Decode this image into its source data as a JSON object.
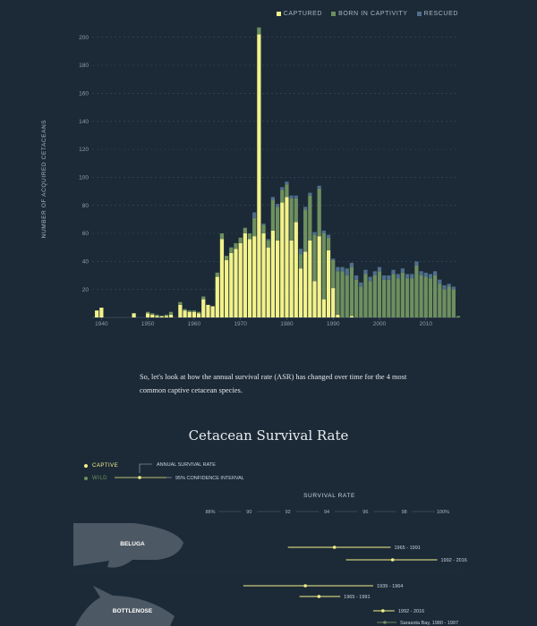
{
  "legend": {
    "captured": "CAPTURED",
    "born": "BORN IN CAPTIVITY",
    "rescued": "RESCUED"
  },
  "colors": {
    "captured": "#f3f28a",
    "born": "#6e8f5f",
    "rescued": "#4f6f8c"
  },
  "paragraph": "So, let's look at how the annual survival rate (ASR) has changed over time for the 4 most common captive cetacean species.",
  "chart_data": [
    {
      "type": "bar",
      "stacked": true,
      "ylabel": "NUMBER OF ACQUIRED CETACEANS",
      "xlim": [
        1938,
        2017
      ],
      "ylim": [
        0,
        210
      ],
      "yticks": [
        20,
        40,
        60,
        80,
        100,
        120,
        140,
        160,
        180,
        200
      ],
      "xticks": [
        1940,
        1950,
        1960,
        1970,
        1980,
        1990,
        2000,
        2010
      ],
      "grid": true,
      "legend_position": "top-right",
      "years": [
        1938,
        1939,
        1940,
        1941,
        1942,
        1943,
        1944,
        1945,
        1946,
        1947,
        1948,
        1949,
        1950,
        1951,
        1952,
        1953,
        1954,
        1955,
        1956,
        1957,
        1958,
        1959,
        1960,
        1961,
        1962,
        1963,
        1964,
        1965,
        1966,
        1967,
        1968,
        1969,
        1970,
        1971,
        1972,
        1973,
        1974,
        1975,
        1976,
        1977,
        1978,
        1979,
        1980,
        1981,
        1982,
        1983,
        1984,
        1985,
        1986,
        1987,
        1988,
        1989,
        1990,
        1991,
        1992,
        1993,
        1994,
        1995,
        1996,
        1997,
        1998,
        1999,
        2000,
        2001,
        2002,
        2003,
        2004,
        2005,
        2006,
        2007,
        2008,
        2009,
        2010,
        2011,
        2012,
        2013,
        2014,
        2015,
        2016,
        2017
      ],
      "series": [
        {
          "name": "CAPTURED",
          "values": [
            0,
            5,
            7,
            0,
            0,
            0,
            0,
            0,
            0,
            3,
            0,
            0,
            3,
            2,
            1,
            1,
            1,
            2,
            0,
            9,
            5,
            4,
            4,
            3,
            13,
            9,
            8,
            29,
            56,
            41,
            46,
            49,
            53,
            60,
            56,
            58,
            202,
            60,
            50,
            62,
            55,
            82,
            86,
            55,
            68,
            35,
            47,
            55,
            26,
            58,
            13,
            48,
            21,
            2,
            0,
            0,
            1,
            0,
            0,
            0,
            0,
            0,
            0,
            0,
            0,
            0,
            0,
            0,
            0,
            0,
            0,
            0,
            0,
            0,
            0,
            0,
            0,
            0,
            0,
            0
          ]
        },
        {
          "name": "BORN IN CAPTIVITY",
          "values": [
            0,
            0,
            0,
            0,
            0,
            0,
            0,
            0,
            0,
            0,
            0,
            0,
            1,
            1,
            1,
            0,
            1,
            2,
            0,
            2,
            1,
            1,
            1,
            1,
            2,
            0,
            0,
            3,
            4,
            3,
            4,
            4,
            4,
            4,
            4,
            13,
            5,
            6,
            5,
            22,
            24,
            9,
            9,
            30,
            17,
            10,
            30,
            32,
            33,
            34,
            47,
            9,
            20,
            31,
            33,
            30,
            35,
            27,
            22,
            31,
            26,
            30,
            33,
            27,
            27,
            31,
            28,
            32,
            28,
            28,
            37,
            30,
            29,
            28,
            30,
            24,
            20,
            22,
            20,
            1
          ]
        },
        {
          "name": "RESCUED",
          "values": [
            0,
            0,
            0,
            0,
            0,
            0,
            0,
            0,
            0,
            0,
            0,
            0,
            0,
            0,
            0,
            0,
            0,
            0,
            0,
            0,
            0,
            0,
            0,
            0,
            0,
            0,
            0,
            0,
            0,
            0,
            0,
            0,
            0,
            0,
            0,
            4,
            0,
            1,
            1,
            2,
            2,
            2,
            2,
            2,
            2,
            4,
            2,
            2,
            2,
            2,
            2,
            2,
            1,
            3,
            3,
            5,
            3,
            3,
            3,
            3,
            3,
            3,
            3,
            3,
            3,
            3,
            3,
            3,
            3,
            3,
            3,
            3,
            3,
            3,
            3,
            3,
            3,
            2,
            2,
            0
          ]
        }
      ]
    },
    {
      "type": "range",
      "title": "Cetacean Survival Rate",
      "xlabel": "SURVIVAL RATE",
      "xlim": [
        88,
        100
      ],
      "xticks": [
        "88%",
        "90",
        "92",
        "94",
        "96",
        "98",
        "100%"
      ],
      "xtick_values": [
        88,
        90,
        92,
        94,
        96,
        98,
        100
      ],
      "legend": {
        "captive": "CAPTIVE",
        "wild": "WILD",
        "asr_note": "ANNUAL SURVIVAL RATE",
        "ci_note": "95% CONFIDENCE INTERVAL"
      },
      "species": [
        {
          "name": "BELUGA",
          "intervals": [
            {
              "label": "1965 - 1991",
              "kind": "captive",
              "low": 92.0,
              "high": 97.3,
              "asr": 94.4
            },
            {
              "label": "1992 - 2016",
              "kind": "captive",
              "low": 95.0,
              "high": 99.7,
              "asr": 97.4
            }
          ]
        },
        {
          "name": "BOTTLENOSE",
          "intervals": [
            {
              "label": "1939 - 1964",
              "kind": "captive",
              "low": 89.7,
              "high": 96.4,
              "asr": 92.9
            },
            {
              "label": "1965 - 1991",
              "kind": "captive",
              "low": 92.6,
              "high": 94.7,
              "asr": 93.6
            },
            {
              "label": "1992 - 2016",
              "kind": "captive",
              "low": 96.4,
              "high": 97.5,
              "asr": 96.9
            },
            {
              "label": "Sarasota Bay, 1980 - 1997",
              "kind": "wild",
              "low": 96.6,
              "high": 97.6,
              "asr": 97.0
            }
          ]
        }
      ]
    }
  ]
}
